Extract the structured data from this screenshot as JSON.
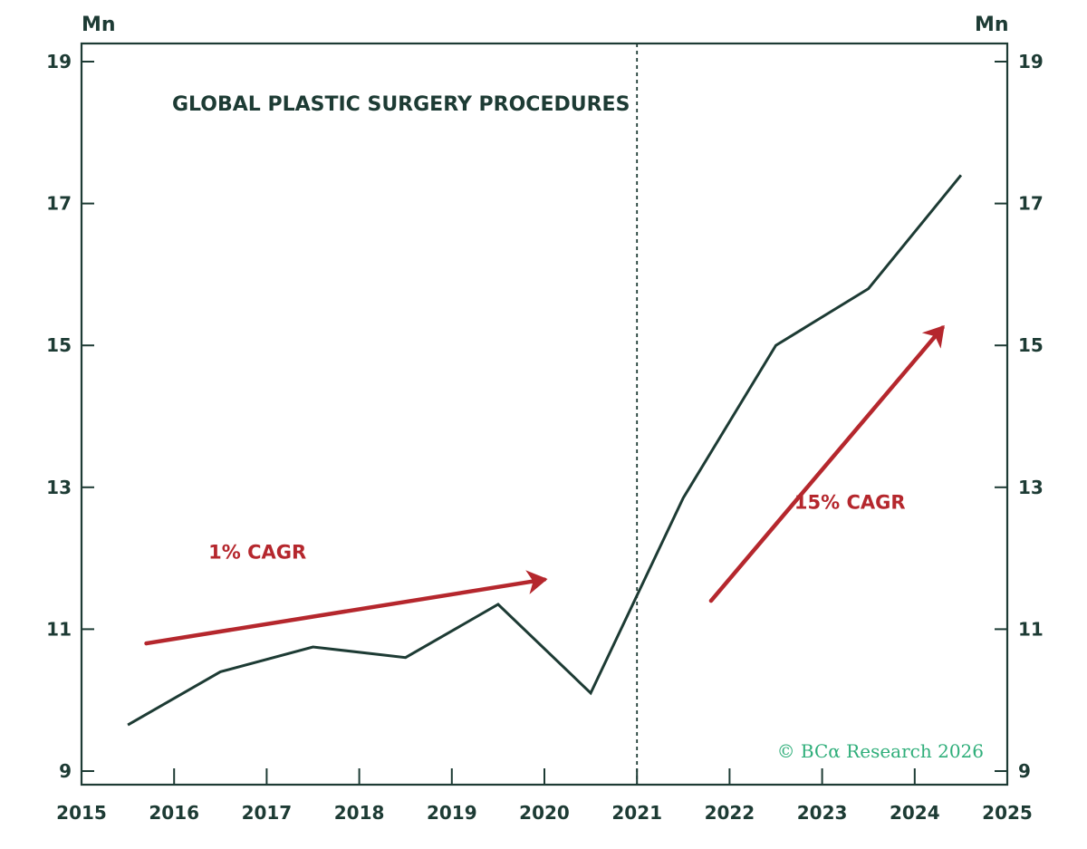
{
  "colors": {
    "ink": "#1d3b34",
    "line": "#1d3b34",
    "arrow": "#b5272d",
    "credit": "#2fae7a",
    "divider": "#1d3b34"
  },
  "chart_data": {
    "type": "line",
    "title": "GLOBAL PLASTIC SURGERY PROCEDURES",
    "y_unit_left": "Mn",
    "y_unit_right": "Mn",
    "ylim": [
      9,
      19
    ],
    "y_ticks": [
      9,
      11,
      13,
      15,
      17,
      19
    ],
    "xlim": [
      2015,
      2025
    ],
    "x_ticks": [
      "2015",
      "2016",
      "2017",
      "2018",
      "2019",
      "2020",
      "2021",
      "2022",
      "2023",
      "2024",
      "2025"
    ],
    "grid": false,
    "series": [
      {
        "x": [
          2015.5,
          2016.5,
          2017.5,
          2018.5,
          2019.5,
          2020.5,
          2021.5,
          2022.5,
          2023.5,
          2024.5
        ],
        "values": [
          9.65,
          10.4,
          10.75,
          10.6,
          11.35,
          10.1,
          12.85,
          15.0,
          15.8,
          17.4
        ]
      }
    ],
    "vertical_marker": {
      "x": 2021,
      "style": "dashed"
    },
    "annotations": [
      {
        "text": "1% CAGR",
        "arrow_from": [
          2015.7,
          10.8
        ],
        "arrow_to": [
          2020.0,
          11.7
        ],
        "label_at": [
          2016.9,
          12.1
        ]
      },
      {
        "text": "15% CAGR",
        "arrow_from": [
          2021.8,
          11.4
        ],
        "arrow_to": [
          2024.3,
          15.25
        ],
        "label_at": [
          2023.3,
          12.8
        ]
      }
    ],
    "credit": "© BCα Research 2026"
  }
}
